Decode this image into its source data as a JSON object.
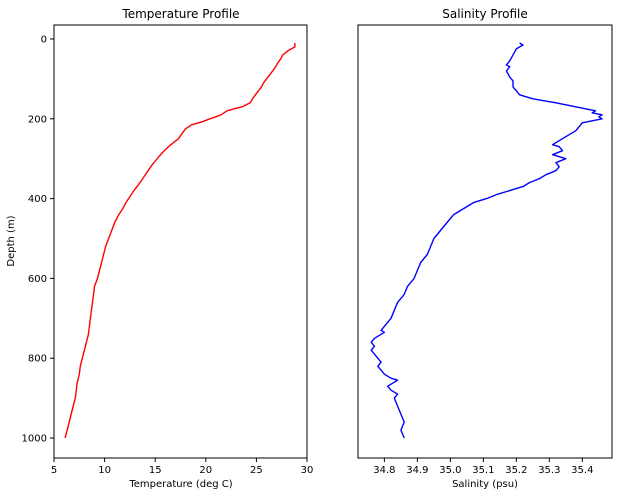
{
  "chart_data": [
    {
      "type": "line",
      "title": "Temperature Profile",
      "xlabel": "Temperature (deg C)",
      "ylabel": "Depth (m)",
      "xlim": [
        5,
        30
      ],
      "ylim": [
        1050,
        -35
      ],
      "xticks": [
        "5",
        "10",
        "15",
        "20",
        "25",
        "30"
      ],
      "yticks": [
        "0",
        "200",
        "400",
        "600",
        "800",
        "1000"
      ],
      "grid": false,
      "color": "#ff0000",
      "series": [
        {
          "x": [
            28.8,
            28.8,
            28.1,
            27.6,
            27.4,
            27.1,
            26.9,
            26.6,
            26.3,
            26.0,
            25.7,
            25.5,
            25.2,
            24.9,
            24.6,
            24.4,
            23.6,
            22.8,
            22.1,
            21.5,
            21.0,
            20.4,
            19.9,
            19.3,
            18.6,
            18.0,
            17.7,
            17.3,
            16.8,
            16.3,
            15.7,
            15.2,
            14.7,
            14.3,
            13.9,
            13.5,
            13.2,
            12.9,
            12.5,
            12.1,
            11.8,
            11.4,
            11.0,
            10.7,
            10.4,
            10.1,
            9.9,
            9.7,
            9.5,
            9.3,
            9.0,
            8.9,
            8.8,
            8.7,
            8.6,
            8.5,
            8.4,
            8.2,
            8.0,
            7.8,
            7.6,
            7.5,
            7.3,
            7.2,
            7.1,
            7.0,
            6.9,
            6.8,
            6.7,
            6.6,
            6.5,
            6.4,
            6.3,
            6.2,
            6.1
          ],
          "y": [
            10,
            20,
            30,
            40,
            50,
            60,
            70,
            80,
            90,
            100,
            110,
            120,
            130,
            140,
            150,
            160,
            170,
            175,
            180,
            190,
            195,
            200,
            205,
            210,
            215,
            225,
            235,
            250,
            260,
            270,
            285,
            300,
            315,
            330,
            345,
            360,
            370,
            380,
            395,
            410,
            425,
            440,
            460,
            480,
            500,
            520,
            540,
            560,
            580,
            600,
            620,
            640,
            660,
            680,
            700,
            720,
            740,
            760,
            780,
            800,
            820,
            840,
            860,
            880,
            900,
            910,
            920,
            930,
            940,
            950,
            960,
            970,
            980,
            990,
            1000
          ]
        }
      ]
    },
    {
      "type": "line",
      "title": "Salinity Profile",
      "xlabel": "Salinity (psu)",
      "ylabel": "",
      "xlim": [
        34.72,
        35.49
      ],
      "ylim": [
        1050,
        -35
      ],
      "xticks": [
        "34.8",
        "34.9",
        "35.0",
        "35.1",
        "35.2",
        "35.3",
        "35.4"
      ],
      "yticks": [],
      "grid": false,
      "color": "#0000ff",
      "series": [
        {
          "x": [
            35.21,
            35.22,
            35.2,
            35.19,
            35.18,
            35.17,
            35.18,
            35.17,
            35.18,
            35.19,
            35.19,
            35.2,
            35.21,
            35.25,
            35.32,
            35.38,
            35.44,
            35.43,
            35.46,
            35.45,
            35.46,
            35.4,
            35.39,
            35.38,
            35.36,
            35.34,
            35.33,
            35.31,
            35.33,
            35.34,
            35.31,
            35.33,
            35.35,
            35.32,
            35.33,
            35.32,
            35.29,
            35.27,
            35.24,
            35.22,
            35.18,
            35.14,
            35.11,
            35.07,
            35.04,
            35.01,
            34.99,
            34.97,
            34.95,
            34.94,
            34.93,
            34.91,
            34.9,
            34.89,
            34.87,
            34.86,
            34.84,
            34.83,
            34.82,
            34.81,
            34.8,
            34.79,
            34.8,
            34.79,
            34.78,
            34.77,
            34.76,
            34.77,
            34.76,
            34.77,
            34.78,
            34.79,
            34.78,
            34.79,
            34.8,
            34.82,
            34.84,
            34.83,
            34.81,
            34.82,
            34.84,
            34.83,
            34.84,
            34.85,
            34.86,
            34.85,
            34.86
          ],
          "y": [
            10,
            15,
            25,
            40,
            55,
            65,
            70,
            80,
            95,
            105,
            120,
            130,
            140,
            150,
            160,
            170,
            180,
            185,
            190,
            195,
            200,
            210,
            220,
            230,
            240,
            250,
            255,
            265,
            270,
            280,
            290,
            295,
            300,
            310,
            320,
            330,
            340,
            350,
            360,
            370,
            380,
            390,
            400,
            410,
            425,
            440,
            460,
            480,
            500,
            520,
            540,
            560,
            580,
            600,
            620,
            640,
            660,
            680,
            700,
            710,
            720,
            730,
            735,
            740,
            745,
            750,
            760,
            770,
            780,
            790,
            800,
            810,
            820,
            830,
            840,
            850,
            855,
            860,
            870,
            880,
            890,
            900,
            920,
            940,
            960,
            980,
            1000
          ]
        }
      ]
    }
  ]
}
